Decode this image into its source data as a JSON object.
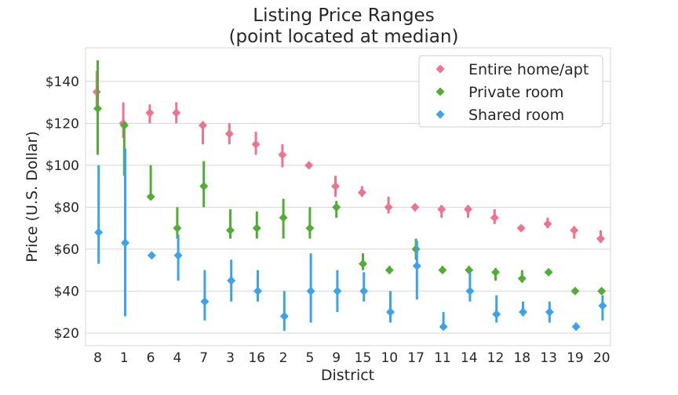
{
  "chart_data": {
    "type": "scatter",
    "title": "Listing Price Ranges",
    "subtitle": "(point located at median)",
    "xlabel": "District",
    "ylabel": "Price (U.S. Dollar)",
    "categories": [
      "8",
      "1",
      "6",
      "4",
      "7",
      "3",
      "16",
      "2",
      "5",
      "9",
      "15",
      "10",
      "17",
      "11",
      "14",
      "12",
      "18",
      "13",
      "19",
      "20"
    ],
    "ylim": [
      14,
      156
    ],
    "yticks": [
      20,
      40,
      60,
      80,
      100,
      120,
      140
    ],
    "ytick_labels": [
      "$20",
      "$40",
      "$60",
      "$80",
      "$100",
      "$120",
      "$140"
    ],
    "grid": true,
    "legend_position": "top-right",
    "series": [
      {
        "name": "Entire home/apt",
        "color": "#f0738d",
        "values": [
          135,
          120,
          125,
          125,
          119,
          115,
          110,
          105,
          100,
          90,
          87,
          80,
          80,
          79,
          79,
          75,
          70,
          72,
          69,
          65
        ],
        "low": [
          128,
          113,
          120,
          120,
          110,
          110,
          105,
          99,
          99,
          85,
          85,
          77,
          78,
          75,
          75,
          72,
          69,
          70,
          65,
          63
        ],
        "high": [
          145,
          130,
          129,
          130,
          121,
          120,
          116,
          110,
          101,
          95,
          90,
          85,
          81,
          81,
          81,
          79,
          71,
          75,
          71,
          69
        ]
      },
      {
        "name": "Private room",
        "color": "#4fae33",
        "values": [
          127,
          119,
          85,
          70,
          90,
          69,
          70,
          75,
          70,
          80,
          53,
          50,
          60,
          50,
          50,
          49,
          46,
          49,
          40,
          40
        ],
        "low": [
          105,
          95,
          85,
          65,
          80,
          65,
          65,
          65,
          65,
          75,
          50,
          49,
          55,
          49,
          49,
          45,
          44,
          48,
          40,
          39
        ],
        "high": [
          150,
          120,
          100,
          80,
          102,
          79,
          78,
          84,
          80,
          83,
          58,
          52,
          65,
          52,
          52,
          51,
          50,
          50,
          41,
          41
        ]
      },
      {
        "name": "Shared room",
        "color": "#3ba3ec",
        "values": [
          68,
          63,
          57,
          57,
          35,
          45,
          40,
          28,
          40,
          40,
          40,
          30,
          52,
          23,
          40,
          29,
          30,
          30,
          23,
          33
        ],
        "low": [
          53,
          28,
          57,
          45,
          26,
          35,
          35,
          21,
          25,
          30,
          35,
          25,
          36,
          23,
          35,
          25,
          28,
          25,
          22,
          26
        ],
        "high": [
          100,
          108,
          58,
          67,
          50,
          55,
          50,
          40,
          58,
          50,
          49,
          40,
          64,
          30,
          49,
          38,
          35,
          35,
          25,
          38
        ]
      }
    ]
  }
}
